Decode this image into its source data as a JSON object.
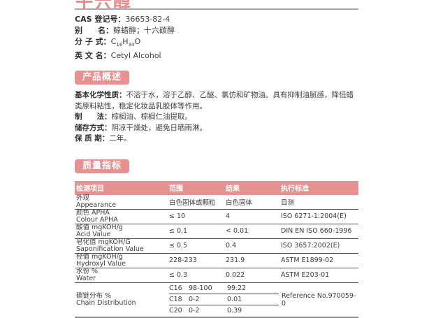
{
  "page": {
    "title": "十六醇",
    "accent_color": "#e89191",
    "text_color": "#3d3d3d"
  },
  "basic_info": {
    "cas_label": "CAS 登记号：",
    "cas_value": "36653-82-4",
    "alias_label": "别　　名：",
    "alias_value": "鲸蜡醇；十六碳醇",
    "formula_label": "分 子 式：",
    "formula": {
      "e1": "C",
      "s1": "16",
      "e2": "H",
      "s2": "34",
      "e3": "O"
    },
    "english_label": "英 文 名：",
    "english_value": "Cetyl Alcohol"
  },
  "overview": {
    "badge": "产品概述",
    "properties_label": "基本化学性质：",
    "properties_value": "不溶于水，溶于乙醇、乙醚、氯仿和矿物油。具有抑制油腻感，降低蜡类原料粘性，稳定化妆品乳胶体等作用。",
    "method_label": "制　　法：",
    "method_value": "棕榈油、棕榈仁油提取。",
    "storage_label": "储存方式：",
    "storage_value": "阴凉干燥处，避免日晒雨淋。",
    "shelf_label": "保 质 期：",
    "shelf_value": "二年。"
  },
  "quality": {
    "badge": "质量指标",
    "headers": [
      "检测项目",
      "范围",
      "结果",
      "执行标准"
    ],
    "rows": [
      {
        "zh": "外观",
        "en": "Appearance",
        "range": "白色固体或颗粒",
        "result": "白色固体",
        "standard": "目测"
      },
      {
        "zh": "颜色 APHA",
        "en": "Colour APHA",
        "range": "≤ 10",
        "result": "4",
        "standard": "ISO 6271-1:2004(E)"
      },
      {
        "zh": "酸值 mgKOH/g",
        "en": "Acid Value",
        "range": "≤ 0.1",
        "result": "< 0.01",
        "standard": "DIN EN ISO 660-1996"
      },
      {
        "zh": "皂化值 mgKOH/G",
        "en": "Saponification Value",
        "range": "≤ 0.5",
        "result": "0.4",
        "standard": "ISO 3657:2002(E)"
      },
      {
        "zh": "羟值 mgKOH/g",
        "en": "Hydroxyl Value",
        "range": "228-233",
        "result": "231.9",
        "standard": "ASTM E1899-02"
      },
      {
        "zh": "水份 %",
        "en": "Water",
        "range": "≤ 0.3",
        "result": "0.022",
        "standard": "ASTM E203-01"
      }
    ],
    "chain": {
      "zh": "碳链分布 %",
      "en": "Chain Distribution",
      "standard": "Reference No.970059-0",
      "sub_rows": [
        {
          "chain": "C16",
          "range": "98-100",
          "result": "99.22"
        },
        {
          "chain": "C18",
          "range": "0-2",
          "result": "0.01"
        },
        {
          "chain": "C20",
          "range": "0-2",
          "result": "0.39"
        }
      ]
    }
  }
}
